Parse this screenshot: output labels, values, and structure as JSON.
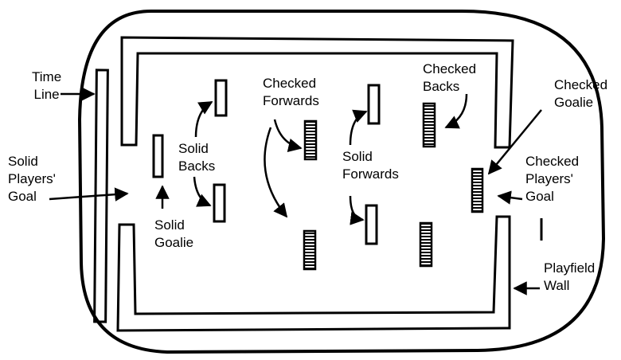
{
  "labels": {
    "time_line": "Time\nLine",
    "solid_players_goal": "Solid\nPlayers'\nGoal",
    "solid_goalie": "Solid\nGoalie",
    "solid_backs": "Solid\nBacks",
    "checked_forwards": "Checked\nForwards",
    "solid_forwards": "Solid\nForwards",
    "checked_backs": "Checked\nBacks",
    "checked_goalie": "Checked\nGoalie",
    "checked_players_goal": "Checked\nPlayers'\nGoal",
    "playfield_wall": "Playfield\nWall"
  },
  "players": {
    "solid_style": "outline",
    "checked_style": "striped"
  },
  "colors": {
    "ink": "#000000",
    "background": "#ffffff"
  }
}
